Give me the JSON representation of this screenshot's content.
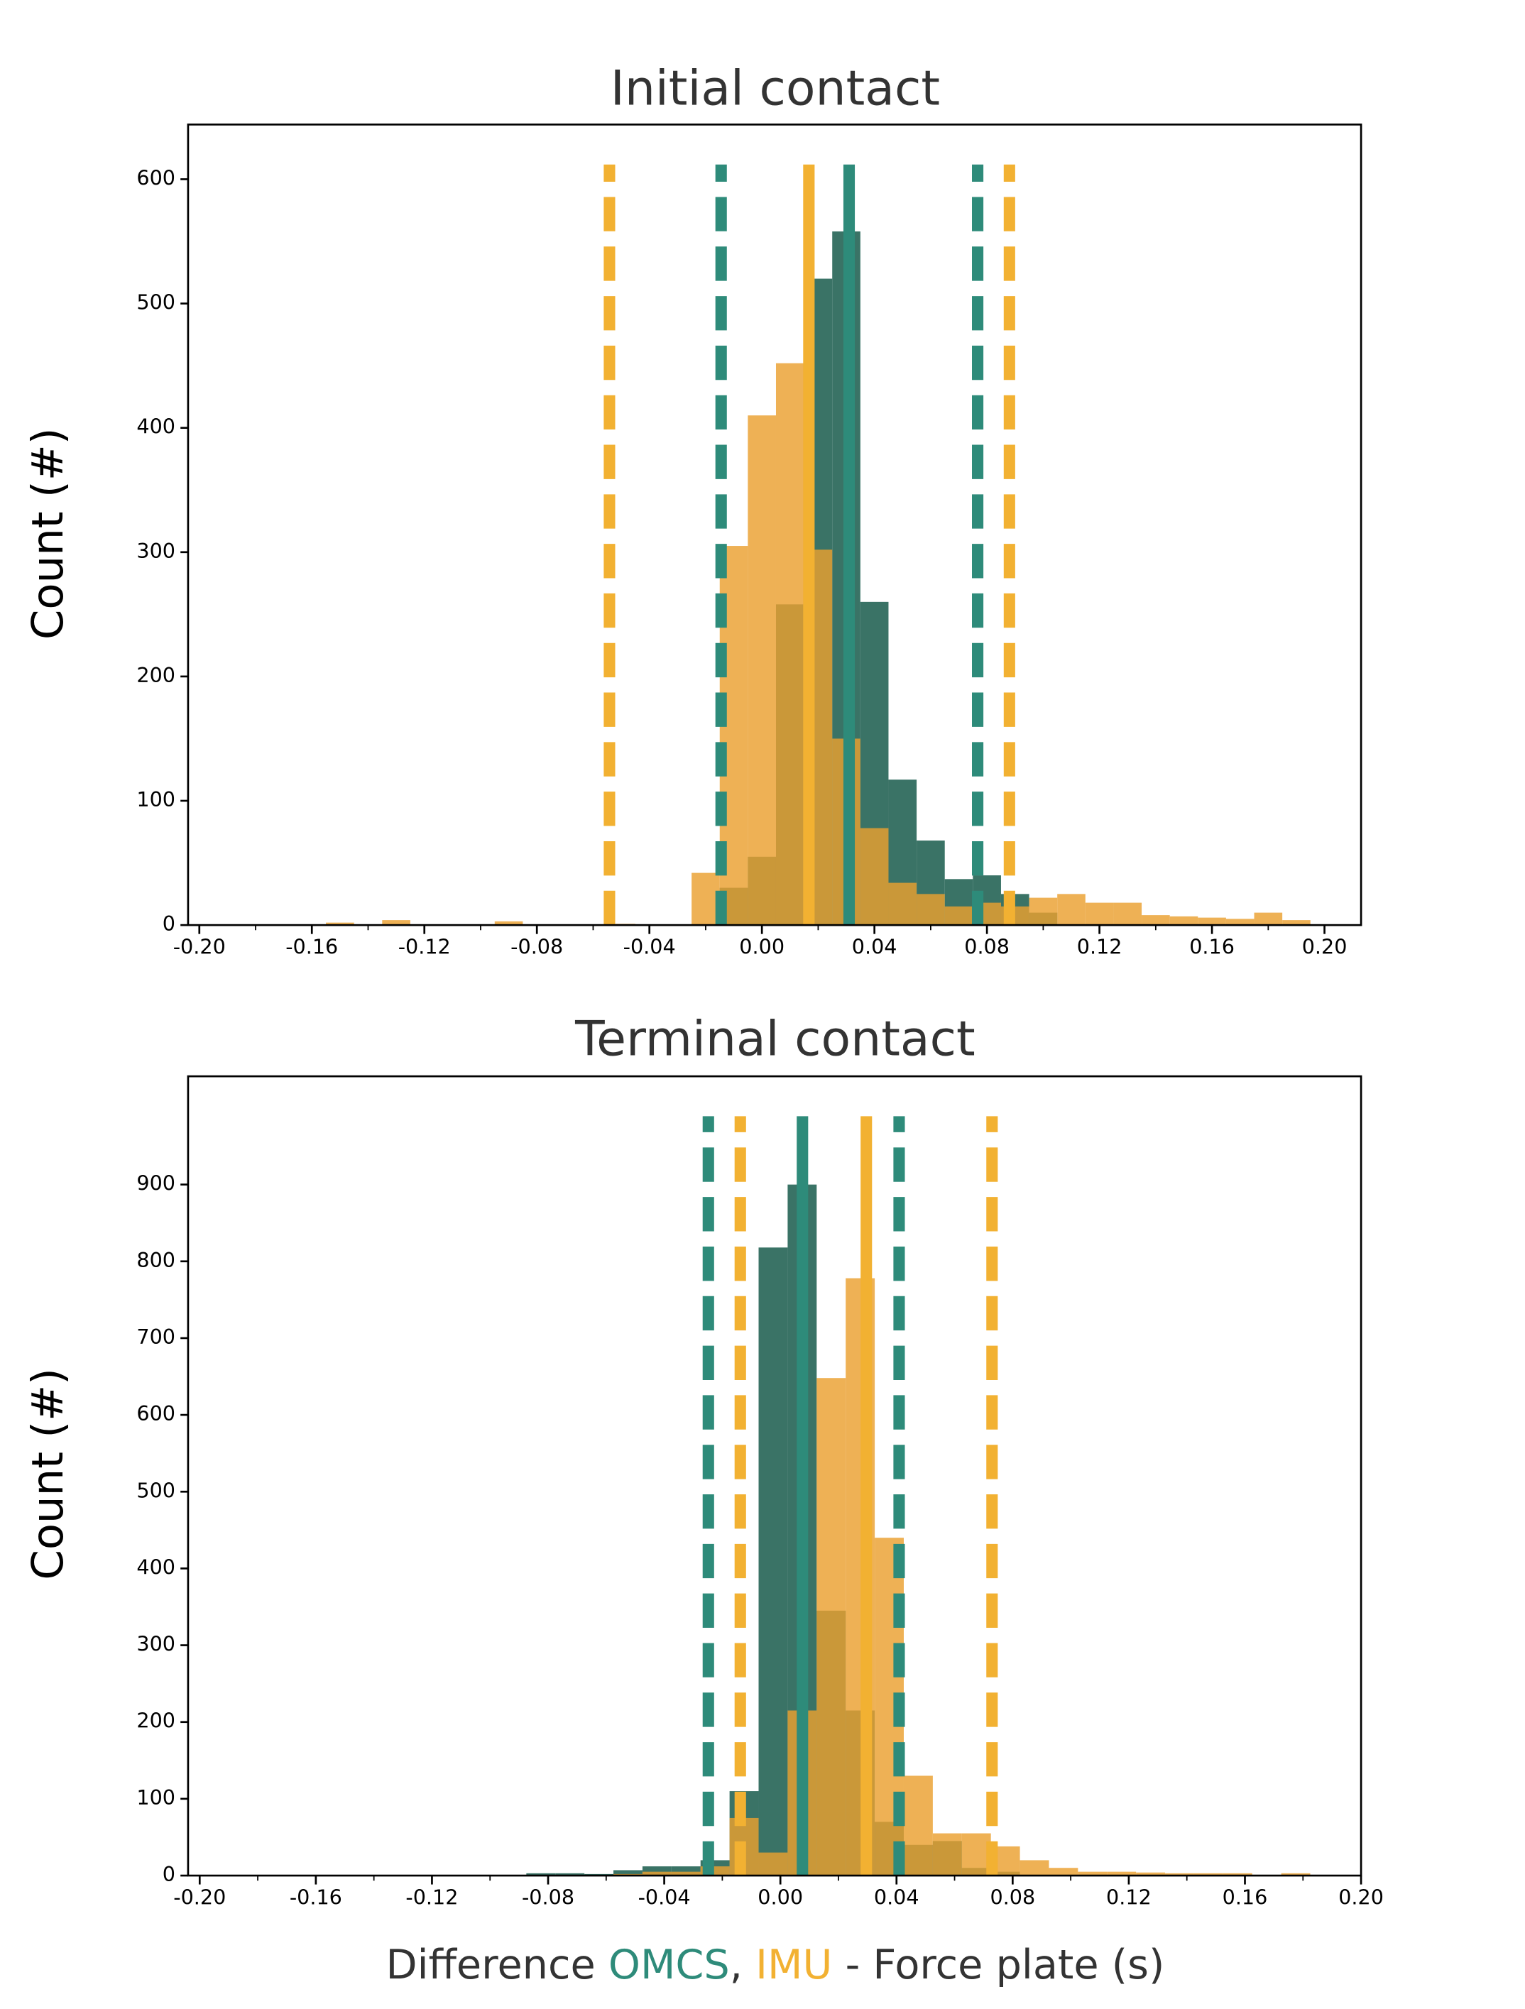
{
  "chart_data": [
    {
      "type": "histogram",
      "title": "Initial contact",
      "ylabel": "Count (#)",
      "xlim": [
        -0.204,
        0.213
      ],
      "ylim": [
        0,
        644
      ],
      "xticks": [
        {
          "value": -0.2,
          "label": "-0.20"
        },
        {
          "value": -0.16,
          "label": "-0.16"
        },
        {
          "value": -0.12,
          "label": "-0.12"
        },
        {
          "value": -0.08,
          "label": "-0.08"
        },
        {
          "value": -0.04,
          "label": "-0.04"
        },
        {
          "value": 0,
          "label": "0.00"
        },
        {
          "value": 0.04,
          "label": "0.04"
        },
        {
          "value": 0.08,
          "label": "0.08"
        },
        {
          "value": 0.12,
          "label": "0.12"
        },
        {
          "value": 0.16,
          "label": "0.16"
        },
        {
          "value": 0.2,
          "label": "0.20"
        }
      ],
      "xminorticks": [
        -0.18,
        -0.14,
        -0.1,
        -0.06,
        -0.02,
        0.02,
        0.06,
        0.1,
        0.14,
        0.18
      ],
      "yticks": [
        0,
        100,
        200,
        300,
        400,
        500,
        600
      ],
      "bins": [
        -0.165,
        -0.155,
        -0.145,
        -0.135,
        -0.125,
        -0.115,
        -0.105,
        -0.095,
        -0.085,
        -0.075,
        -0.065,
        -0.055,
        -0.045,
        -0.035,
        -0.025,
        -0.015,
        -0.005,
        0.005,
        0.015,
        0.025,
        0.035,
        0.045,
        0.055,
        0.065,
        0.075,
        0.085,
        0.095,
        0.105,
        0.115,
        0.125,
        0.135,
        0.145,
        0.155,
        0.165,
        0.175,
        0.185,
        0.195
      ],
      "series": [
        {
          "color": "#2f6b5e",
          "line_color": "#2e8b7a",
          "values": [
            0,
            0,
            0,
            0,
            0,
            0,
            0,
            0,
            0,
            0,
            0,
            0,
            0,
            0,
            0,
            30,
            55,
            258,
            520,
            558,
            260,
            117,
            68,
            37,
            40,
            25,
            10,
            0,
            0,
            0,
            0,
            0,
            0,
            0,
            0,
            0
          ],
          "mean": 0.031,
          "lower": -0.0145,
          "upper": 0.0767
        },
        {
          "color": "#eaa030",
          "line_color": "#f2b132",
          "values": [
            0,
            2,
            0,
            4,
            0,
            0,
            0,
            3,
            0,
            0,
            0,
            1,
            0,
            0,
            42,
            305,
            410,
            452,
            302,
            150,
            78,
            34,
            25,
            15,
            18,
            15,
            22,
            25,
            18,
            18,
            8,
            7,
            6,
            5,
            10,
            4
          ],
          "mean": 0.0167,
          "lower": -0.0542,
          "upper": 0.088
        }
      ]
    },
    {
      "type": "histogram",
      "title": "Terminal contact",
      "ylabel": "Count (#)",
      "xlim": [
        -0.204,
        0.2
      ],
      "ylim": [
        0,
        1041
      ],
      "xticks": [
        {
          "value": -0.2,
          "label": "-0.20"
        },
        {
          "value": -0.16,
          "label": "-0.16"
        },
        {
          "value": -0.12,
          "label": "-0.12"
        },
        {
          "value": -0.08,
          "label": "-0.08"
        },
        {
          "value": -0.04,
          "label": "-0.04"
        },
        {
          "value": 0,
          "label": "0.00"
        },
        {
          "value": 0.04,
          "label": "0.04"
        },
        {
          "value": 0.08,
          "label": "0.08"
        },
        {
          "value": 0.12,
          "label": "0.12"
        },
        {
          "value": 0.16,
          "label": "0.16"
        },
        {
          "value": 0.2,
          "label": "0.20"
        }
      ],
      "xminorticks": [
        -0.18,
        -0.14,
        -0.1,
        -0.06,
        -0.02,
        0.02,
        0.06,
        0.1,
        0.14,
        0.18
      ],
      "yticks": [
        0,
        100,
        200,
        300,
        400,
        500,
        600,
        700,
        800,
        900
      ],
      "bins": [
        -0.0875,
        -0.0775,
        -0.0675,
        -0.0575,
        -0.0475,
        -0.0375,
        -0.0275,
        -0.0175,
        -0.0075,
        0.0025,
        0.0125,
        0.0225,
        0.0325,
        0.0425,
        0.0525,
        0.0625,
        0.0725,
        0.0825,
        0.0925,
        0.1025,
        0.1125,
        0.1225,
        0.1325,
        0.1425,
        0.1525,
        0.1625,
        0.1725,
        0.1825
      ],
      "xlabel": {
        "before": "Difference",
        "between": ",",
        "after": "- Force plate (s)"
      },
      "series": [
        {
          "name": "OMCS",
          "color": "#2f6b5e",
          "line_color": "#2e8b7a",
          "values": [
            3,
            3,
            2,
            7,
            12,
            12,
            20,
            110,
            818,
            900,
            345,
            215,
            70,
            40,
            45,
            10,
            5,
            0,
            0,
            0,
            0,
            0,
            0,
            0,
            0,
            0,
            0
          ],
          "mean": 0.0076,
          "lower": -0.0248,
          "upper": 0.0409
        },
        {
          "name": "IMU",
          "color": "#eaa030",
          "line_color": "#f2b132",
          "values": [
            0,
            0,
            0,
            2,
            5,
            5,
            12,
            75,
            30,
            215,
            648,
            778,
            440,
            130,
            55,
            55,
            38,
            20,
            10,
            5,
            5,
            4,
            3,
            3,
            3,
            1,
            3
          ],
          "mean": 0.0296,
          "lower": -0.0138,
          "upper": 0.0729
        }
      ]
    }
  ]
}
